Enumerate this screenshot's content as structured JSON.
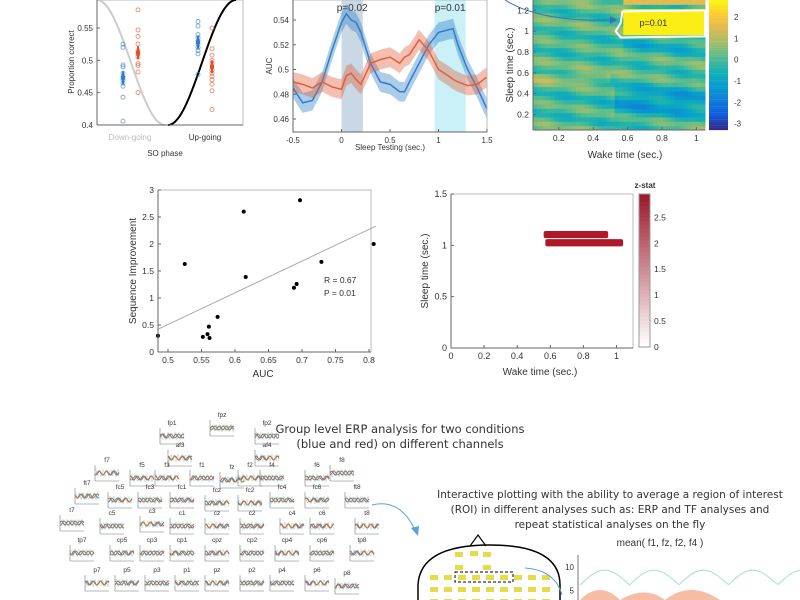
{
  "chart_data": [
    {
      "type": "scatter",
      "ylabel": "Proportion correct",
      "xlabel": "SO phase",
      "categories": [
        "Down-going",
        "Up-going"
      ],
      "ylim": [
        0.4,
        0.59
      ],
      "yticks": [
        0.4,
        0.45,
        0.5,
        0.55
      ],
      "series": [
        {
          "color": "#2f7fc8",
          "means": [
            0.473,
            0.528
          ],
          "sem": [
            0.01,
            0.01
          ],
          "points": [
            [
              0.406,
              0.443,
              0.46,
              0.465,
              0.47,
              0.475,
              0.48,
              0.49,
              0.493,
              0.52,
              0.525
            ],
            [
              0.478,
              0.51,
              0.515,
              0.52,
              0.525,
              0.53,
              0.535,
              0.54,
              0.553,
              0.56,
              0.6
            ]
          ]
        },
        {
          "color": "#e0502a",
          "means": [
            0.512,
            0.49
          ],
          "sem": [
            0.01,
            0.01
          ],
          "points": [
            [
              0.45,
              0.482,
              0.492,
              0.495,
              0.505,
              0.51,
              0.515,
              0.525,
              0.537,
              0.547,
              0.578
            ],
            [
              0.424,
              0.453,
              0.463,
              0.47,
              0.475,
              0.48,
              0.485,
              0.495,
              0.5,
              0.508,
              0.518,
              0.55
            ]
          ]
        }
      ]
    },
    {
      "type": "line",
      "ylabel": "AUC",
      "xlabel": "Sleep Testing (sec.)",
      "xlim": [
        -0.5,
        1.5
      ],
      "ylim": [
        0.45,
        0.555
      ],
      "xticks": [
        -0.5,
        0,
        0.5,
        1,
        1.5
      ],
      "yticks": [
        0.46,
        0.48,
        0.5,
        0.52,
        0.54
      ],
      "shaded_windows": [
        {
          "range": [
            0,
            0.22
          ],
          "label": "p=0.02",
          "color": "#9fb8cf"
        },
        {
          "range": [
            0.96,
            1.28
          ],
          "label": "p=0.01",
          "color": "#9ee3f2"
        }
      ],
      "x": [
        -0.5,
        -0.4,
        -0.3,
        -0.2,
        -0.1,
        0,
        0.05,
        0.1,
        0.15,
        0.2,
        0.3,
        0.4,
        0.5,
        0.6,
        0.65,
        0.7,
        0.8,
        0.9,
        1.0,
        1.1,
        1.15,
        1.2,
        1.3,
        1.4,
        1.5
      ],
      "series": [
        {
          "color": "#2f7fc8",
          "values": [
            0.485,
            0.473,
            0.475,
            0.49,
            0.515,
            0.538,
            0.545,
            0.54,
            0.538,
            0.53,
            0.505,
            0.49,
            0.488,
            0.482,
            0.482,
            0.49,
            0.505,
            0.52,
            0.53,
            0.532,
            0.533,
            0.52,
            0.5,
            0.485,
            0.468
          ],
          "band": 0.008
        },
        {
          "color": "#e0603a",
          "values": [
            0.49,
            0.488,
            0.485,
            0.49,
            0.486,
            0.484,
            0.495,
            0.497,
            0.492,
            0.488,
            0.505,
            0.508,
            0.51,
            0.505,
            0.51,
            0.512,
            0.524,
            0.515,
            0.5,
            0.495,
            0.492,
            0.49,
            0.487,
            0.488,
            0.494
          ],
          "band": 0.008
        }
      ]
    },
    {
      "type": "heatmap",
      "ylabel": "Sleep time (sec.)",
      "xlabel": "Wake time (sec.)",
      "xlim": [
        0.05,
        1.05
      ],
      "ylim": [
        0.05,
        1.3
      ],
      "xticks": [
        0.2,
        0.4,
        0.6,
        0.8,
        1
      ],
      "yticks": [
        0.2,
        0.4,
        0.6,
        0.8,
        1,
        1.2
      ],
      "colorbar": {
        "min": -3.3,
        "max": 2.8,
        "ticks": [
          -3,
          -2,
          -1,
          0,
          1,
          2
        ],
        "colormap": "parula"
      },
      "annotation": {
        "text": "p=0.01",
        "cluster_x": [
          0.55,
          1.05
        ],
        "cluster_y": [
          0.95,
          1.2
        ]
      }
    },
    {
      "type": "scatter",
      "ylabel": "Sequence Improvement",
      "xlabel": "AUC",
      "xlim": [
        0.485,
        0.81
      ],
      "ylim": [
        0,
        3
      ],
      "xticks": [
        0.5,
        0.55,
        0.6,
        0.65,
        0.7,
        0.75,
        0.8
      ],
      "yticks": [
        0,
        0.5,
        1,
        1.5,
        2,
        2.5,
        3
      ],
      "points": [
        [
          0.485,
          0.3
        ],
        [
          0.525,
          1.63
        ],
        [
          0.552,
          0.28
        ],
        [
          0.559,
          0.33
        ],
        [
          0.561,
          0.47
        ],
        [
          0.562,
          0.26
        ],
        [
          0.574,
          0.65
        ],
        [
          0.613,
          2.6
        ],
        [
          0.616,
          1.39
        ],
        [
          0.688,
          1.19
        ],
        [
          0.692,
          1.26
        ],
        [
          0.697,
          2.81
        ],
        [
          0.729,
          1.67
        ],
        [
          0.807,
          2.0
        ]
      ],
      "fit_line": [
        [
          0.485,
          0.42
        ],
        [
          0.81,
          2.33
        ]
      ],
      "annotations": [
        "R = 0.67",
        "P = 0.01"
      ]
    },
    {
      "type": "heatmap",
      "ylabel": "Sleep time (sec.)",
      "xlabel": "Wake time (sec.)",
      "xlim": [
        0,
        1.1
      ],
      "ylim": [
        0,
        1.5
      ],
      "xticks": [
        0,
        0.2,
        0.4,
        0.6,
        0.8,
        1
      ],
      "yticks": [
        0,
        0.5,
        1,
        1.5
      ],
      "colorbar": {
        "label": "z-stat",
        "min": 0,
        "max": 2.95,
        "ticks": [
          0,
          0.5,
          1,
          1.5,
          2,
          2.5
        ],
        "colormap": "white-red"
      },
      "clusters": [
        {
          "x": [
            0.56,
            0.95
          ],
          "y": [
            1.07,
            1.14
          ]
        },
        {
          "x": [
            0.57,
            1.04
          ],
          "y": [
            0.99,
            1.06
          ]
        }
      ]
    }
  ],
  "erp": {
    "caption_lines": [
      "Group level ERP analysis for two conditions",
      "(blue and red) on different channels"
    ],
    "channels": [
      "fp1",
      "fpz",
      "fp2",
      "af3",
      "af4",
      "f7",
      "f5",
      "f3",
      "f1",
      "fz",
      "f2",
      "f4",
      "f6",
      "f8",
      "ft7",
      "fc5",
      "fc3",
      "fc1",
      "fcz",
      "fc2",
      "fc4",
      "fc6",
      "ft8",
      "t7",
      "c5",
      "c3",
      "c1",
      "cz",
      "c2",
      "c4",
      "c6",
      "t8",
      "tp7",
      "cp5",
      "cp3",
      "cp1",
      "cpz",
      "cp2",
      "cp4",
      "cp6",
      "tp8",
      "p7",
      "p5",
      "p3",
      "p1",
      "pz",
      "p2",
      "p4",
      "p6",
      "p8"
    ]
  },
  "roi": {
    "caption_lines": [
      "Interactive plotting with the ability to average a region of interest",
      "(ROI) in different analyses such as: ERP and TF analyses and",
      "repeat statistical analyses on the fly"
    ],
    "plot_title": "mean( f1, fz, f2, f4 )",
    "yticks": [
      5,
      10
    ]
  }
}
